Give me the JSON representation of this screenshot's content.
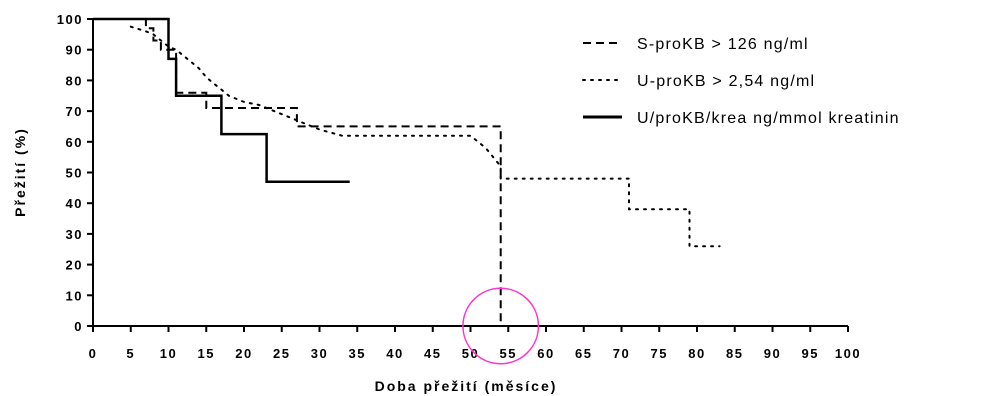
{
  "chart_data": {
    "type": "line",
    "subtype": "kaplan-meier step",
    "xlabel": "Doba přežití (měsíce)",
    "ylabel": "Přežití (%)",
    "xlim": [
      0,
      100
    ],
    "ylim": [
      0,
      100
    ],
    "x_ticks": [
      "0",
      "5",
      "10",
      "15",
      "20",
      "25",
      "30",
      "35",
      "40",
      "45",
      "50",
      "55",
      "60",
      "65",
      "70",
      "75",
      "80",
      "85",
      "90",
      "95",
      "100"
    ],
    "y_ticks": [
      "0",
      "10",
      "20",
      "30",
      "40",
      "50",
      "60",
      "70",
      "80",
      "90",
      "100"
    ],
    "grid": false,
    "legend_position": "top-right",
    "series": [
      {
        "name": "S-proKB > 126 ng/ml",
        "style": "dashed",
        "color": "#000000",
        "points": [
          [
            0,
            100
          ],
          [
            7,
            100
          ],
          [
            7,
            97
          ],
          [
            8,
            97
          ],
          [
            8,
            93
          ],
          [
            9,
            93
          ],
          [
            9,
            90
          ],
          [
            11,
            90
          ],
          [
            11,
            76
          ],
          [
            15,
            76
          ],
          [
            15,
            71
          ],
          [
            27,
            71
          ],
          [
            27,
            65
          ],
          [
            54,
            65
          ],
          [
            54,
            0
          ]
        ]
      },
      {
        "name": "U-proKB > 2,54 ng/ml",
        "style": "dotted",
        "color": "#000000",
        "points": [
          [
            5,
            97.5
          ],
          [
            7,
            96
          ],
          [
            8,
            95
          ],
          [
            9,
            93
          ],
          [
            10,
            91
          ],
          [
            11,
            90
          ],
          [
            12,
            88
          ],
          [
            13,
            86
          ],
          [
            14,
            84
          ],
          [
            15,
            81
          ],
          [
            16,
            79
          ],
          [
            17,
            77
          ],
          [
            18,
            75
          ],
          [
            20,
            73
          ],
          [
            22,
            72
          ],
          [
            24,
            70
          ],
          [
            26,
            68
          ],
          [
            28,
            66
          ],
          [
            30,
            64
          ],
          [
            33,
            62
          ],
          [
            50,
            62
          ],
          [
            51,
            60
          ],
          [
            52,
            58
          ],
          [
            53,
            55
          ],
          [
            54,
            52
          ],
          [
            54,
            48
          ],
          [
            71,
            48
          ],
          [
            71,
            38
          ],
          [
            79,
            38
          ],
          [
            79,
            26
          ],
          [
            83,
            26
          ]
        ]
      },
      {
        "name": "U/proKB/krea ng/mmol kreatinin",
        "style": "solid",
        "color": "#000000",
        "points": [
          [
            0,
            100
          ],
          [
            10,
            100
          ],
          [
            10,
            87
          ],
          [
            11,
            87
          ],
          [
            11,
            75
          ],
          [
            17,
            75
          ],
          [
            17,
            62.5
          ],
          [
            23,
            62.5
          ],
          [
            23,
            47
          ],
          [
            34,
            47
          ]
        ]
      }
    ],
    "annotations": [
      {
        "type": "circle",
        "color": "#ff33cc",
        "center": [
          54,
          0
        ],
        "radius_x_units": 5
      }
    ]
  }
}
